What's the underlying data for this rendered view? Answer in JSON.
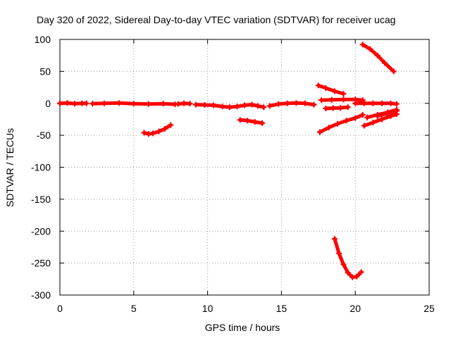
{
  "chart_data": {
    "type": "scatter",
    "title": "Day 320 of 2022, Sidereal Day-to-day VTEC variation (SDTVAR) for receiver ucag",
    "xlabel": "GPS time / hours",
    "ylabel": "SDTVAR / TECUs",
    "xlim": [
      0,
      25
    ],
    "ylim": [
      -300,
      100
    ],
    "xticks": [
      "0",
      "5",
      "10",
      "15",
      "20",
      "25"
    ],
    "yticks": [
      "100",
      "50",
      "0",
      "-50",
      "-100",
      "-150",
      "-200",
      "-250",
      "-300"
    ],
    "grid": true,
    "marker_color": "#ff0000",
    "series": [
      {
        "x": [
          0,
          0.5,
          1,
          1.5,
          1.8
        ],
        "y": [
          0,
          0.5,
          -0.5,
          0,
          0
        ]
      },
      {
        "x": [
          2.2,
          3,
          4,
          5,
          6,
          7,
          7.8
        ],
        "y": [
          -0.5,
          0,
          0.5,
          -0.5,
          -1,
          -0.5,
          -1.5
        ]
      },
      {
        "x": [
          8,
          8.4,
          8.8
        ],
        "y": [
          -1,
          0,
          -0.5
        ]
      },
      {
        "x": [
          5.7,
          6,
          6.3,
          6.7,
          7.1,
          7.5
        ],
        "y": [
          -46,
          -48,
          -47,
          -44,
          -40,
          -34
        ]
      },
      {
        "x": [
          9.2,
          9.8,
          10.4,
          11,
          11.5,
          12,
          12.5,
          13,
          13.4,
          13.8
        ],
        "y": [
          -2,
          -2.5,
          -3,
          -5,
          -6,
          -5,
          -3,
          -2,
          -4,
          -6
        ]
      },
      {
        "x": [
          12.2,
          12.7,
          13.2,
          13.7
        ],
        "y": [
          -26,
          -27,
          -29,
          -31
        ]
      },
      {
        "x": [
          14.2,
          14.8,
          15.4,
          16,
          16.6,
          17.2
        ],
        "y": [
          -4,
          -1,
          0,
          0.5,
          0,
          -2
        ]
      },
      {
        "x": [
          17.5,
          18,
          18.6,
          19.2
        ],
        "y": [
          28,
          24,
          19,
          15
        ]
      },
      {
        "x": [
          17.7,
          18.4,
          19.2,
          20,
          20.5
        ],
        "y": [
          5,
          5.5,
          6,
          6,
          5
        ]
      },
      {
        "x": [
          18,
          18.5,
          19,
          19.5
        ],
        "y": [
          -8,
          -7.5,
          -7,
          -6
        ]
      },
      {
        "x": [
          20,
          20.6,
          21.2,
          21.8,
          22.4,
          22.8
        ],
        "y": [
          0,
          0,
          0,
          0,
          0,
          -1
        ]
      },
      {
        "x": [
          17.6,
          18.2,
          18.8,
          19.4,
          20,
          20.5
        ],
        "y": [
          -45,
          -38,
          -32,
          -27,
          -23,
          -18
        ]
      },
      {
        "x": [
          20.6,
          21.2,
          21.8,
          22.4,
          22.8
        ],
        "y": [
          -35,
          -30,
          -25,
          -20,
          -17
        ]
      },
      {
        "x": [
          20.8,
          21.5,
          22.2,
          22.8
        ],
        "y": [
          -22,
          -18,
          -14,
          -10
        ]
      },
      {
        "x": [
          21.5,
          22.1,
          22.8
        ],
        "y": [
          -20,
          -16,
          -12
        ]
      },
      {
        "x": [
          20.5,
          21,
          21.5,
          22,
          22.6
        ],
        "y": [
          92,
          85,
          75,
          63,
          50
        ]
      },
      {
        "x": [
          18.6,
          18.9,
          19.2,
          19.5,
          19.8,
          20.1,
          20.4
        ],
        "y": [
          -212,
          -235,
          -252,
          -265,
          -272,
          -271,
          -264
        ]
      }
    ]
  }
}
